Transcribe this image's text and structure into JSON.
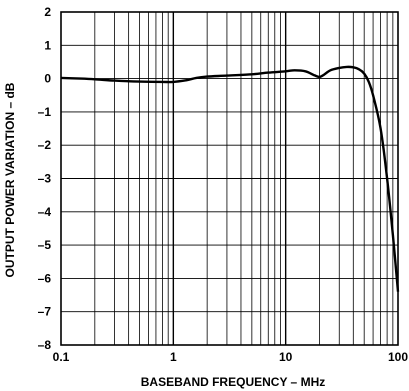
{
  "chart_data": {
    "type": "line",
    "title": "",
    "xlabel": "BASEBAND FREQUENCY – MHz",
    "ylabel": "OUTPUT POWER VARIATION – dB",
    "x_scale": "log",
    "xlim": [
      0.1,
      100
    ],
    "ylim": [
      -8,
      2
    ],
    "grid": true,
    "legend": "none",
    "x_ticks": [
      "0.1",
      "1",
      "10",
      "100"
    ],
    "y_ticks": [
      "2",
      "1",
      "0",
      "–1",
      "–2",
      "–3",
      "–4",
      "–5",
      "–6",
      "–7",
      "–8"
    ],
    "series": [
      {
        "color": "#000000",
        "x": [
          0.1,
          0.15,
          0.2,
          0.3,
          0.5,
          0.8,
          1,
          1.3,
          1.6,
          2,
          3,
          5,
          7,
          10,
          12,
          15,
          18,
          20,
          22,
          25,
          30,
          35,
          40,
          45,
          50,
          55,
          60,
          70,
          80,
          90,
          100
        ],
        "y": [
          0.02,
          0.0,
          -0.02,
          -0.06,
          -0.09,
          -0.1,
          -0.1,
          -0.05,
          0.02,
          0.06,
          0.09,
          0.13,
          0.18,
          0.22,
          0.25,
          0.22,
          0.1,
          0.05,
          0.12,
          0.25,
          0.32,
          0.35,
          0.34,
          0.28,
          0.15,
          -0.1,
          -0.5,
          -1.5,
          -3.0,
          -4.7,
          -6.4
        ]
      }
    ]
  }
}
